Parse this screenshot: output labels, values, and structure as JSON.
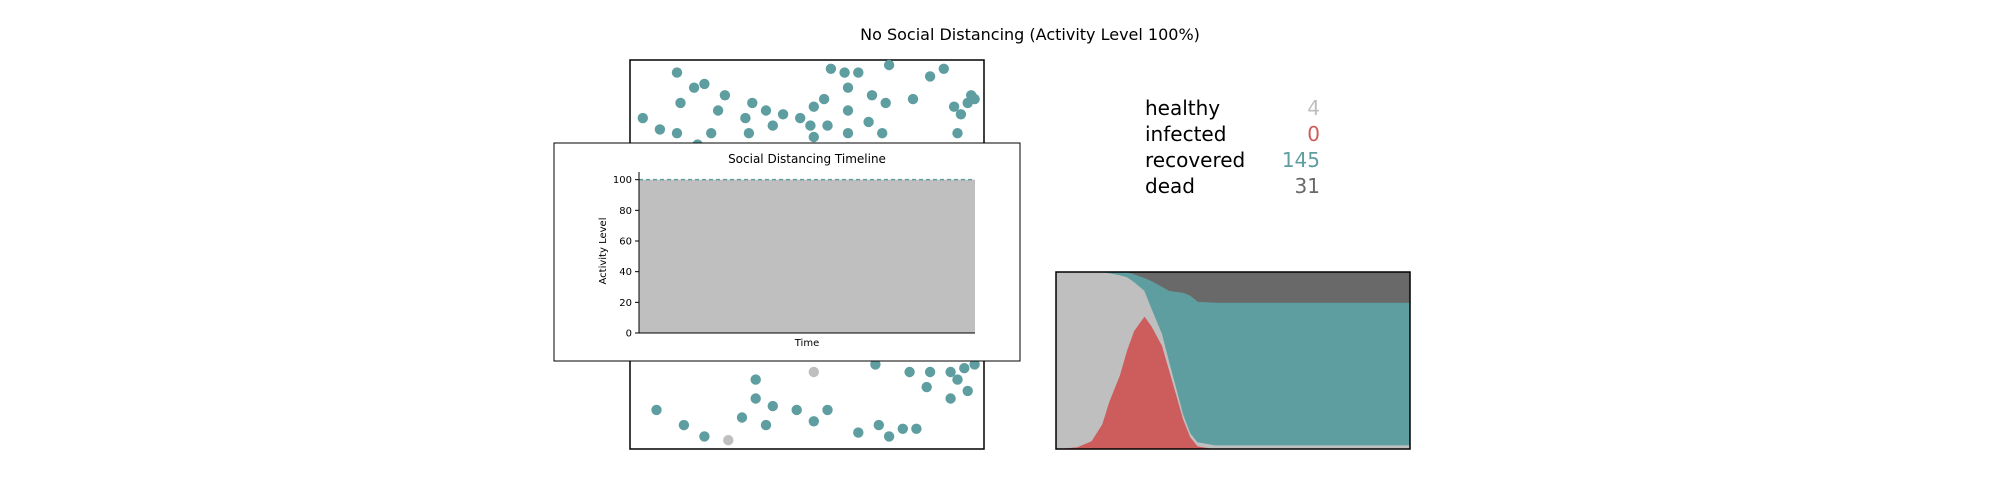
{
  "title": "No Social Distancing (Activity Level 100%)",
  "colors": {
    "healthy": "#bfbfbf",
    "infected": "#cd5c5c",
    "recovered": "#5f9ea0",
    "dead": "#696969",
    "frame": "#000000",
    "background": "#ffffff"
  },
  "stats": [
    {
      "label": "healthy",
      "value": "4",
      "color": "#bfbfbf"
    },
    {
      "label": "infected",
      "value": "0",
      "color": "#cd5c5c"
    },
    {
      "label": "recovered",
      "value": "145",
      "color": "#5f9ea0"
    },
    {
      "label": "dead",
      "value": "31",
      "color": "#696969"
    }
  ],
  "timeline": {
    "title": "Social Distancing Timeline",
    "xlabel": "Time",
    "ylabel": "Activity Level",
    "yticks": [
      "0",
      "20",
      "40",
      "60",
      "80",
      "100"
    ]
  },
  "chart_data": [
    {
      "type": "scatter",
      "id": "population",
      "xlim": [
        0,
        1
      ],
      "ylim": [
        0,
        1
      ],
      "note_colors": "healthy grey, recovered teal",
      "points_recovered": [
        [
          0.12,
          0.98
        ],
        [
          0.17,
          0.94
        ],
        [
          0.2,
          0.95
        ],
        [
          0.26,
          0.92
        ],
        [
          0.24,
          0.88
        ],
        [
          0.13,
          0.9
        ],
        [
          0.02,
          0.86
        ],
        [
          0.12,
          0.82
        ],
        [
          0.07,
          0.83
        ],
        [
          0.22,
          0.82
        ],
        [
          0.34,
          0.9
        ],
        [
          0.32,
          0.86
        ],
        [
          0.33,
          0.82
        ],
        [
          0.38,
          0.88
        ],
        [
          0.4,
          0.84
        ],
        [
          0.43,
          0.87
        ],
        [
          0.48,
          0.86
        ],
        [
          0.51,
          0.84
        ],
        [
          0.52,
          0.89
        ],
        [
          0.55,
          0.91
        ],
        [
          0.56,
          0.84
        ],
        [
          0.57,
          0.99
        ],
        [
          0.61,
          0.98
        ],
        [
          0.62,
          0.94
        ],
        [
          0.65,
          0.98
        ],
        [
          0.62,
          0.88
        ],
        [
          0.69,
          0.92
        ],
        [
          0.62,
          0.82
        ],
        [
          0.68,
          0.85
        ],
        [
          0.72,
          0.82
        ],
        [
          0.73,
          0.9
        ],
        [
          0.74,
          1.0
        ],
        [
          0.81,
          0.91
        ],
        [
          0.86,
          0.97
        ],
        [
          0.9,
          0.99
        ],
        [
          0.93,
          0.89
        ],
        [
          0.97,
          0.9
        ],
        [
          0.98,
          0.92
        ],
        [
          0.99,
          0.91
        ],
        [
          0.95,
          0.87
        ],
        [
          0.94,
          0.82
        ],
        [
          0.52,
          0.81
        ],
        [
          0.57,
          0.78
        ],
        [
          0.18,
          0.79
        ],
        [
          0.21,
          0.78
        ],
        [
          0.3,
          0.78
        ],
        [
          0.52,
          0.78
        ],
        [
          0.76,
          0.78
        ],
        [
          0.84,
          0.76
        ],
        [
          0.9,
          0.78
        ],
        [
          0.02,
          0.28
        ],
        [
          0.07,
          0.24
        ],
        [
          0.3,
          0.29
        ],
        [
          0.36,
          0.29
        ],
        [
          0.4,
          0.29
        ],
        [
          0.49,
          0.28
        ],
        [
          0.56,
          0.3
        ],
        [
          0.62,
          0.3
        ],
        [
          0.75,
          0.24
        ],
        [
          0.7,
          0.21
        ],
        [
          0.8,
          0.19
        ],
        [
          0.86,
          0.19
        ],
        [
          0.92,
          0.19
        ],
        [
          0.96,
          0.2
        ],
        [
          1.0,
          0.28
        ],
        [
          0.99,
          0.21
        ],
        [
          0.55,
          0.29
        ],
        [
          0.35,
          0.17
        ],
        [
          0.94,
          0.17
        ],
        [
          0.85,
          0.15
        ],
        [
          0.92,
          0.12
        ],
        [
          0.97,
          0.14
        ],
        [
          0.06,
          0.09
        ],
        [
          0.14,
          0.05
        ],
        [
          0.31,
          0.07
        ],
        [
          0.38,
          0.05
        ],
        [
          0.2,
          0.02
        ],
        [
          0.35,
          0.12
        ],
        [
          0.4,
          0.1
        ],
        [
          0.47,
          0.09
        ],
        [
          0.52,
          0.06
        ],
        [
          0.56,
          0.09
        ],
        [
          0.65,
          0.03
        ],
        [
          0.71,
          0.05
        ],
        [
          0.74,
          0.02
        ],
        [
          0.78,
          0.04
        ],
        [
          0.82,
          0.04
        ]
      ],
      "points_healthy": [
        [
          0.52,
          0.19
        ],
        [
          0.27,
          0.01
        ]
      ]
    },
    {
      "type": "line",
      "id": "activity-timeline",
      "title": "Social Distancing Timeline",
      "xlabel": "Time",
      "ylabel": "Activity Level",
      "ylim": [
        0,
        105
      ],
      "x": [
        0,
        1
      ],
      "series": [
        {
          "values": [
            100,
            100
          ],
          "style": "dashed",
          "color": "#5f9ea0",
          "fill": "#bfbfbf"
        }
      ]
    },
    {
      "type": "area",
      "id": "epidemic-curve",
      "stacked": true,
      "ylim": [
        0,
        180
      ],
      "x": [
        0,
        0.06,
        0.1,
        0.13,
        0.15,
        0.18,
        0.2,
        0.22,
        0.25,
        0.27,
        0.3,
        0.32,
        0.34,
        0.36,
        0.38,
        0.4,
        0.45,
        0.5,
        1.0
      ],
      "series": [
        {
          "name": "infected",
          "color": "#cd5c5c",
          "values": [
            0,
            2,
            8,
            25,
            48,
            75,
            100,
            120,
            135,
            125,
            105,
            80,
            55,
            30,
            12,
            3,
            0,
            0,
            0
          ]
        },
        {
          "name": "healthy",
          "color": "#bfbfbf",
          "values": [
            180,
            178,
            172,
            155,
            131,
            102,
            75,
            50,
            26,
            18,
            12,
            9,
            7,
            5,
            4,
            4,
            4,
            4,
            4
          ]
        },
        {
          "name": "recovered",
          "color": "#5f9ea0",
          "values": [
            0,
            0,
            0,
            0,
            1,
            3,
            5,
            8,
            13,
            28,
            48,
            72,
            98,
            124,
            140,
            143,
            145,
            145,
            145
          ]
        },
        {
          "name": "dead",
          "color": "#696969",
          "values": [
            0,
            0,
            0,
            0,
            0,
            0,
            0,
            2,
            6,
            9,
            15,
            19,
            20,
            21,
            24,
            30,
            31,
            31,
            31
          ]
        }
      ]
    }
  ]
}
